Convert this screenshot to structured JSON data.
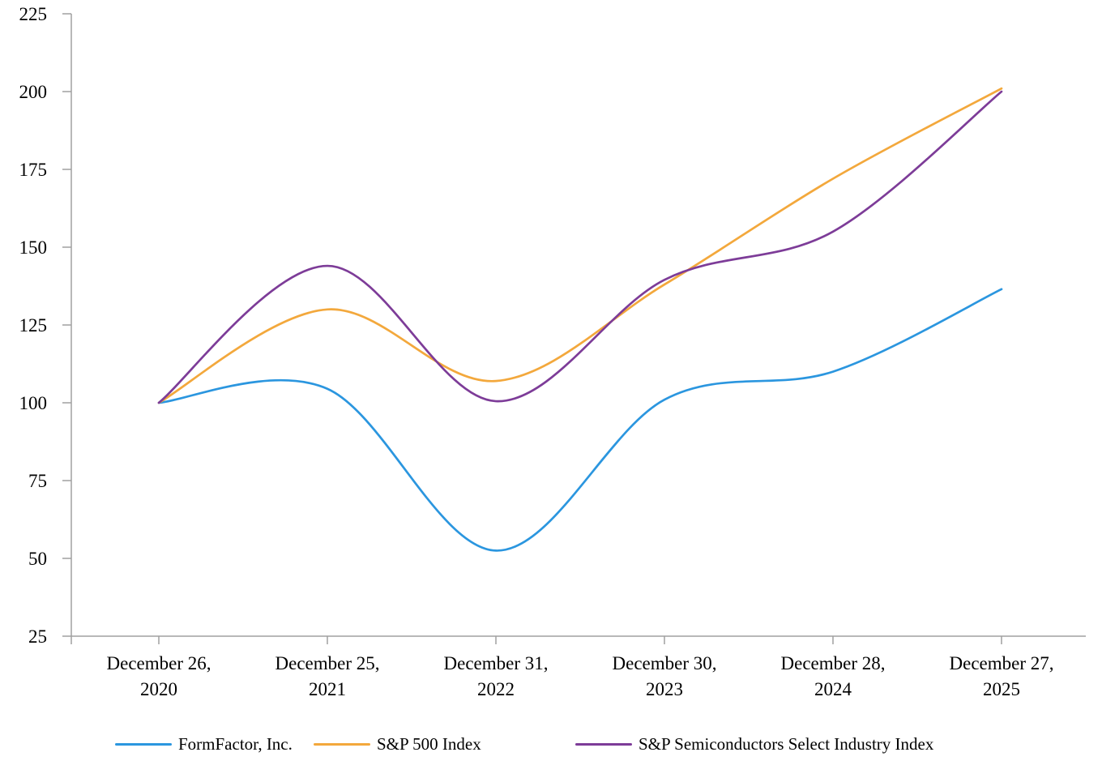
{
  "chart_data": {
    "type": "line",
    "title": "",
    "xlabel": "",
    "ylabel": "",
    "categories": [
      "December 26, 2020",
      "December 25, 2021",
      "December 31, 2022",
      "December 30, 2023",
      "December 28, 2024",
      "December 27, 2025"
    ],
    "series": [
      {
        "name": "FormFactor, Inc.",
        "color": "#2B96DF",
        "values": [
          100,
          104.5,
          52.5,
          101,
          110,
          136.5
        ]
      },
      {
        "name": "S&P 500 Index",
        "color": "#F3A83C",
        "values": [
          100,
          130,
          107,
          138,
          172,
          201
        ]
      },
      {
        "name": "S&P Semiconductors Select Industry Index",
        "color": "#7D3C98",
        "values": [
          100,
          144,
          100.5,
          139.5,
          155,
          200
        ]
      }
    ],
    "ylim": [
      25,
      225
    ],
    "yticks": [
      25,
      50,
      75,
      100,
      125,
      150,
      175,
      200,
      225
    ],
    "grid": false,
    "line_style": "smooth",
    "legend_position": "bottom",
    "axis_color": "#A0A0A0",
    "text_color": "#000000",
    "background_color": "#FFFFFF"
  }
}
